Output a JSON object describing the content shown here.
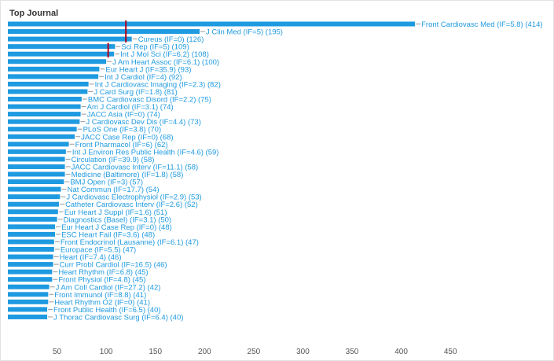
{
  "chart_data": {
    "type": "bar",
    "orientation": "horizontal",
    "title": "Top Journal",
    "xlabel": "",
    "ylabel": "",
    "xlim": [
      0,
      500
    ],
    "grid": false,
    "legend": "none",
    "bar_color": "#1e9ae0",
    "label_color": "#1e9ae0",
    "marker_color": "#b00020",
    "x_ticks": [
      50,
      100,
      150,
      200,
      250,
      300,
      350,
      400,
      450
    ],
    "x_tick_labels": [
      "50",
      "100",
      "150",
      "200",
      "250",
      "300",
      "350",
      "400",
      "450"
    ],
    "categories": [
      "Front Cardiovasc Med (IF=5.8) (414)",
      "J Clin Med (IF=5) (195)",
      "Cureus (IF=0) (126)",
      "Sci Rep (IF=5) (109)",
      "Int J Mol Sci (IF=6.2) (108)",
      "J Am Heart Assoc (IF=6.1) (100)",
      "Eur Heart J (IF=35.9) (93)",
      "Int J Cardiol (IF=4) (92)",
      "Int J Cardiovasc Imaging (IF=2.3) (82)",
      "J Card Surg (IF=1.8) (81)",
      "BMC Cardiovasc Disord (IF=2.2) (75)",
      "Am J Cardiol (IF=3.1) (74)",
      "JACC Asia (IF=0) (74)",
      "J Cardiovasc Dev Dis (IF=4.4) (73)",
      "PLoS One (IF=3.8) (70)",
      "JACC Case Rep (IF=0) (68)",
      "Front Pharmacol (IF=6) (62)",
      "Int J Environ Res Public Health (IF=4.6) (59)",
      "Circulation (IF=39.9) (58)",
      "JACC Cardiovasc Interv (IF=11.1) (58)",
      "Medicine (Baltimore) (IF=1.8) (58)",
      "BMJ Open (IF=3) (57)",
      "Nat Commun (IF=17.7) (54)",
      "J Cardiovasc Electrophysiol (IF=2.9) (53)",
      "Catheter Cardiovasc Interv (IF=2.6) (52)",
      "Eur Heart J Suppl (IF=1.6) (51)",
      "Diagnostics (Basel) (IF=3.1) (50)",
      "Eur Heart J Case Rep (IF=0) (48)",
      "ESC Heart Fail (IF=3.6) (48)",
      "Front Endocrinol (Lausanne) (IF=6.1) (47)",
      "Europace (IF=5.5) (47)",
      "Heart (IF=7.4) (46)",
      "Curr Probl Cardiol (IF=16.5) (46)",
      "Heart Rhythm (IF=6.8) (45)",
      "Front Physiol (IF=4.8) (45)",
      "J Am Coll Cardiol (IF=27.2) (42)",
      "Front Immunol (IF=8.8) (41)",
      "Heart Rhythm O2 (IF=0) (41)",
      "Front Public Health (IF=6.5) (40)",
      "J Thorac Cardiovasc Surg (IF=6.4) (40)"
    ],
    "values": [
      414,
      195,
      126,
      109,
      108,
      100,
      93,
      92,
      82,
      81,
      75,
      74,
      74,
      73,
      70,
      68,
      62,
      59,
      58,
      58,
      58,
      57,
      54,
      53,
      52,
      51,
      50,
      48,
      48,
      47,
      47,
      46,
      46,
      45,
      45,
      42,
      41,
      41,
      40,
      40
    ],
    "markers": [
      {
        "x": 120,
        "from_bar": 0,
        "to_bar": 2
      },
      {
        "x": 102,
        "from_bar": 3,
        "to_bar": 4
      }
    ]
  }
}
